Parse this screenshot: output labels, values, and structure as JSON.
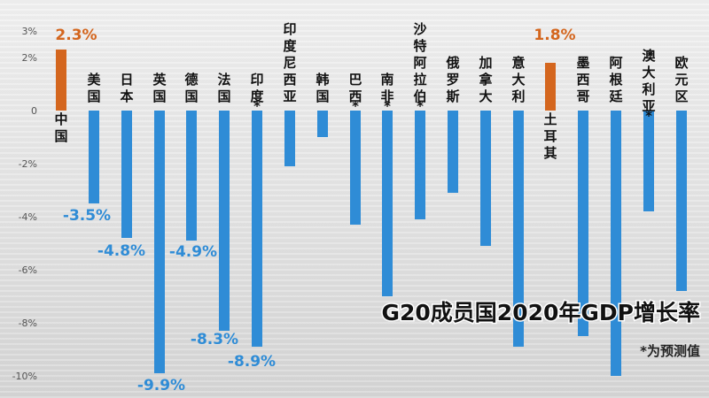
{
  "chart_data": {
    "type": "bar",
    "title": "G20成员国2020年GDP增长率",
    "note": "*为预测值",
    "y_ticks": [
      "3%",
      "2%",
      "0",
      "-2%",
      "-4%",
      "-6%",
      "-8%",
      "-10%"
    ],
    "ylim": [
      -10,
      3
    ],
    "grid": false,
    "colors": {
      "positive": "#d4661e",
      "negative": "#2f8cd6",
      "label_positive": "#d4661e",
      "label_negative": "#2f8cd6"
    },
    "categories": [
      "中国",
      "美国",
      "日本",
      "英国",
      "德国",
      "法国",
      "印度*",
      "印度尼西亚",
      "韩国",
      "巴西*",
      "南非*",
      "沙特阿拉伯*",
      "俄罗斯",
      "加拿大",
      "意大利",
      "土耳其",
      "墨西哥",
      "阿根廷",
      "澳大利亚*",
      "欧元区"
    ],
    "values": [
      2.3,
      -3.5,
      -4.8,
      -9.9,
      -4.9,
      -8.3,
      -8.9,
      -2.1,
      -1.0,
      -4.3,
      -7.0,
      -4.1,
      -3.1,
      -5.1,
      -8.9,
      1.8,
      -8.5,
      -10.0,
      -3.8,
      -6.8
    ],
    "value_labels": [
      "2.3%",
      "-3.5%",
      "-4.8%",
      "-9.9%",
      "-4.9%",
      "-8.3%",
      "-8.9%",
      "",
      "",
      "",
      "",
      "",
      "",
      "",
      "",
      "1.8%",
      "",
      "",
      "",
      ""
    ]
  }
}
